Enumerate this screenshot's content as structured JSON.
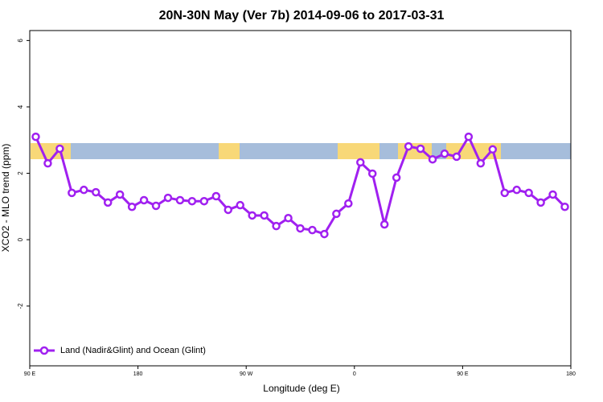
{
  "chart_data": {
    "type": "line",
    "title": "20N-30N May (Ver 7b)   2014-09-06 to 2017-03-31",
    "x_label": "Longitude (deg E)",
    "y_label": "XCO2 - MLO trend (ppm)",
    "x": [
      95,
      105,
      115,
      125,
      135,
      145,
      155,
      165,
      175,
      185,
      195,
      205,
      215,
      225,
      235,
      245,
      255,
      265,
      275,
      285,
      295,
      305,
      315,
      325,
      335,
      345,
      355,
      365,
      375,
      385,
      395,
      405,
      415,
      425,
      435,
      445,
      455,
      465,
      475,
      485,
      495,
      505,
      515,
      525,
      535
    ],
    "series": [
      {
        "name": "Land (Nadir&Glint) and Ocean (Glint)",
        "color": "#a020f0",
        "values": [
          3.1,
          2.3,
          2.74,
          1.41,
          1.5,
          1.43,
          1.12,
          1.36,
          0.99,
          1.19,
          1.02,
          1.26,
          1.19,
          1.16,
          1.16,
          1.31,
          0.9,
          1.04,
          0.73,
          0.73,
          0.41,
          0.65,
          0.34,
          0.29,
          0.17,
          0.78,
          1.09,
          2.33,
          1.99,
          0.46,
          1.87,
          2.81,
          2.74,
          2.42,
          2.59,
          2.5,
          3.1,
          2.3,
          2.72,
          1.41,
          1.5,
          1.41,
          1.12,
          1.36,
          0.99
        ]
      }
    ],
    "xlim": [
      90,
      540
    ],
    "xticks": [
      {
        "value": 90,
        "label": "90 E"
      },
      180,
      {
        "value": 270,
        "label": "90 W"
      },
      {
        "value": 360,
        "label": "0"
      },
      {
        "value": 450,
        "label": "90 E"
      },
      {
        "value": 540,
        "label": "180"
      }
    ],
    "ylim": [
      -3.8,
      6.3
    ],
    "yticks": [
      -2,
      0,
      2,
      4,
      6
    ],
    "legend": "bottomleft"
  }
}
